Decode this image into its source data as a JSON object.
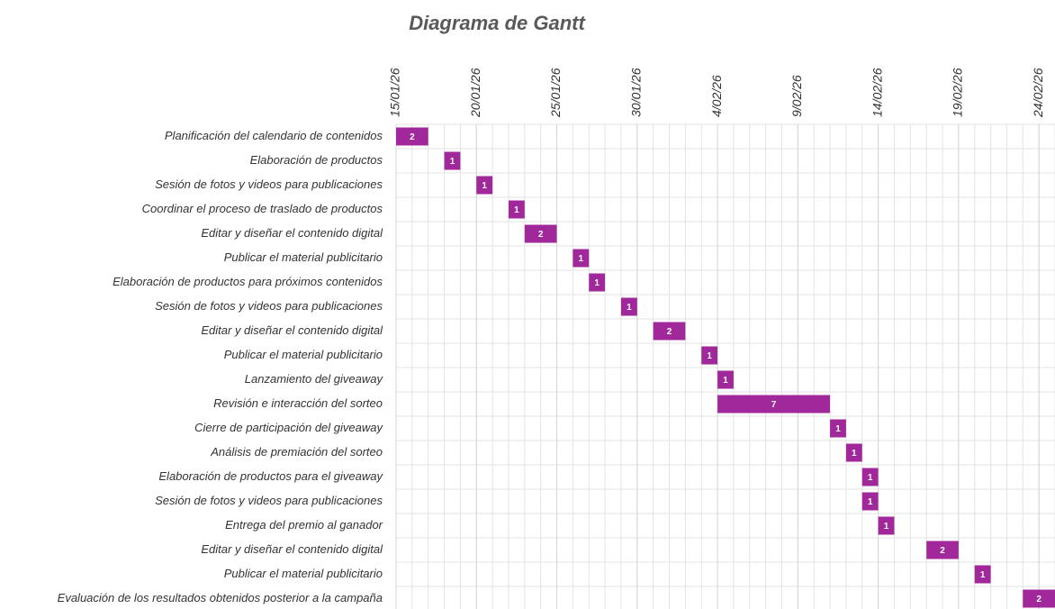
{
  "chart_data": {
    "type": "gantt",
    "title": "Diagrama de Gantt",
    "categories": [
      "Planificación del calendario de contenidos",
      "Elaboración de productos",
      "Sesión de fotos y videos para publicaciones",
      "Coordinar el proceso de traslado de productos",
      "Editar y diseñar el contenido digital",
      "Publicar el material publicitario",
      "Elaboración de productos para próximos contenidos",
      "Sesión de fotos y videos para publicaciones",
      "Editar y diseñar el contenido digital",
      "Publicar el material publicitario",
      "Lanzamiento del giveaway",
      "Revisión e interacción del sorteo",
      "Cierre de participación del giveaway",
      "Análisis de premiación del sorteo",
      "Elaboración de productos para el giveaway",
      "Sesión de fotos y videos para publicaciones",
      "Entrega del premio al ganador",
      "Editar y diseñar el contenido digital ",
      "Publicar el material publicitario",
      "Evaluación de los resultados obtenidos posterior a la campaña"
    ],
    "starts": [
      "2026-01-15",
      "2026-01-18",
      "2026-01-20",
      "2026-01-22",
      "2026-01-23",
      "2026-01-26",
      "2026-01-27",
      "2026-01-29",
      "2026-01-31",
      "2026-02-03",
      "2026-02-04",
      "2026-02-04",
      "2026-02-11",
      "2026-02-12",
      "2026-02-13",
      "2026-02-13",
      "2026-02-14",
      "2026-02-17",
      "2026-02-20",
      "2026-02-23"
    ],
    "values": [
      2,
      1,
      1,
      1,
      2,
      1,
      1,
      1,
      2,
      1,
      1,
      7,
      1,
      1,
      1,
      1,
      1,
      2,
      1,
      2
    ],
    "color": "#a0289b",
    "xlim": [
      "2026-01-15",
      "2026-02-25"
    ],
    "xticks": [
      {
        "value": "2026-01-15",
        "label": "15/01/26"
      },
      {
        "value": "2026-01-20",
        "label": "20/01/26"
      },
      {
        "value": "2026-01-25",
        "label": "25/01/26"
      },
      {
        "value": "2026-01-30",
        "label": "30/01/26"
      },
      {
        "value": "2026-02-04",
        "label": "4/02/26"
      },
      {
        "value": "2026-02-09",
        "label": "9/02/26"
      },
      {
        "value": "2026-02-14",
        "label": "14/02/26"
      },
      {
        "value": "2026-02-19",
        "label": "19/02/26"
      },
      {
        "value": "2026-02-24",
        "label": "24/02/26"
      }
    ],
    "grid": true
  }
}
